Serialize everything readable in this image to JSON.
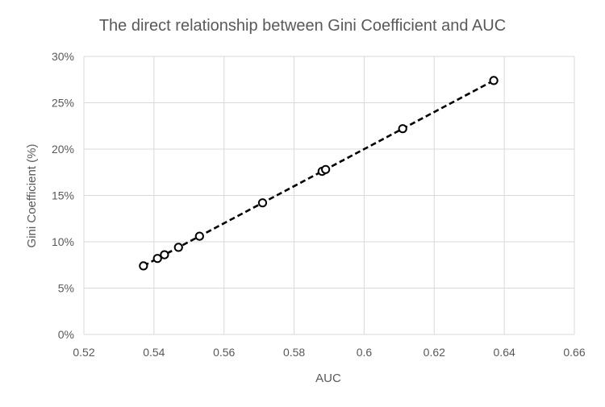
{
  "chart_data": {
    "type": "scatter",
    "title": "The direct relationship between Gini Coefficient and AUC",
    "xlabel": "AUC",
    "ylabel": "Gini Coefficient (%)",
    "xlim": [
      0.52,
      0.66
    ],
    "ylim": [
      0,
      30
    ],
    "x_ticks": [
      "0.52",
      "0.54",
      "0.56",
      "0.58",
      "0.6",
      "0.62",
      "0.64",
      "0.66"
    ],
    "y_ticks": [
      "0%",
      "5%",
      "10%",
      "15%",
      "20%",
      "25%",
      "30%"
    ],
    "grid": true,
    "legend": "none",
    "series": [
      {
        "marker": "open-circle",
        "line": "dashed",
        "color": "#000000",
        "points": [
          {
            "x": 0.537,
            "y": 7.4
          },
          {
            "x": 0.541,
            "y": 8.2
          },
          {
            "x": 0.543,
            "y": 8.6
          },
          {
            "x": 0.547,
            "y": 9.4
          },
          {
            "x": 0.553,
            "y": 10.6
          },
          {
            "x": 0.571,
            "y": 14.2
          },
          {
            "x": 0.588,
            "y": 17.6
          },
          {
            "x": 0.589,
            "y": 17.8
          },
          {
            "x": 0.611,
            "y": 22.2
          },
          {
            "x": 0.637,
            "y": 27.4
          }
        ]
      }
    ],
    "colors": {
      "grid": "#d9d9d9",
      "text": "#595959",
      "series": "#000000"
    }
  }
}
